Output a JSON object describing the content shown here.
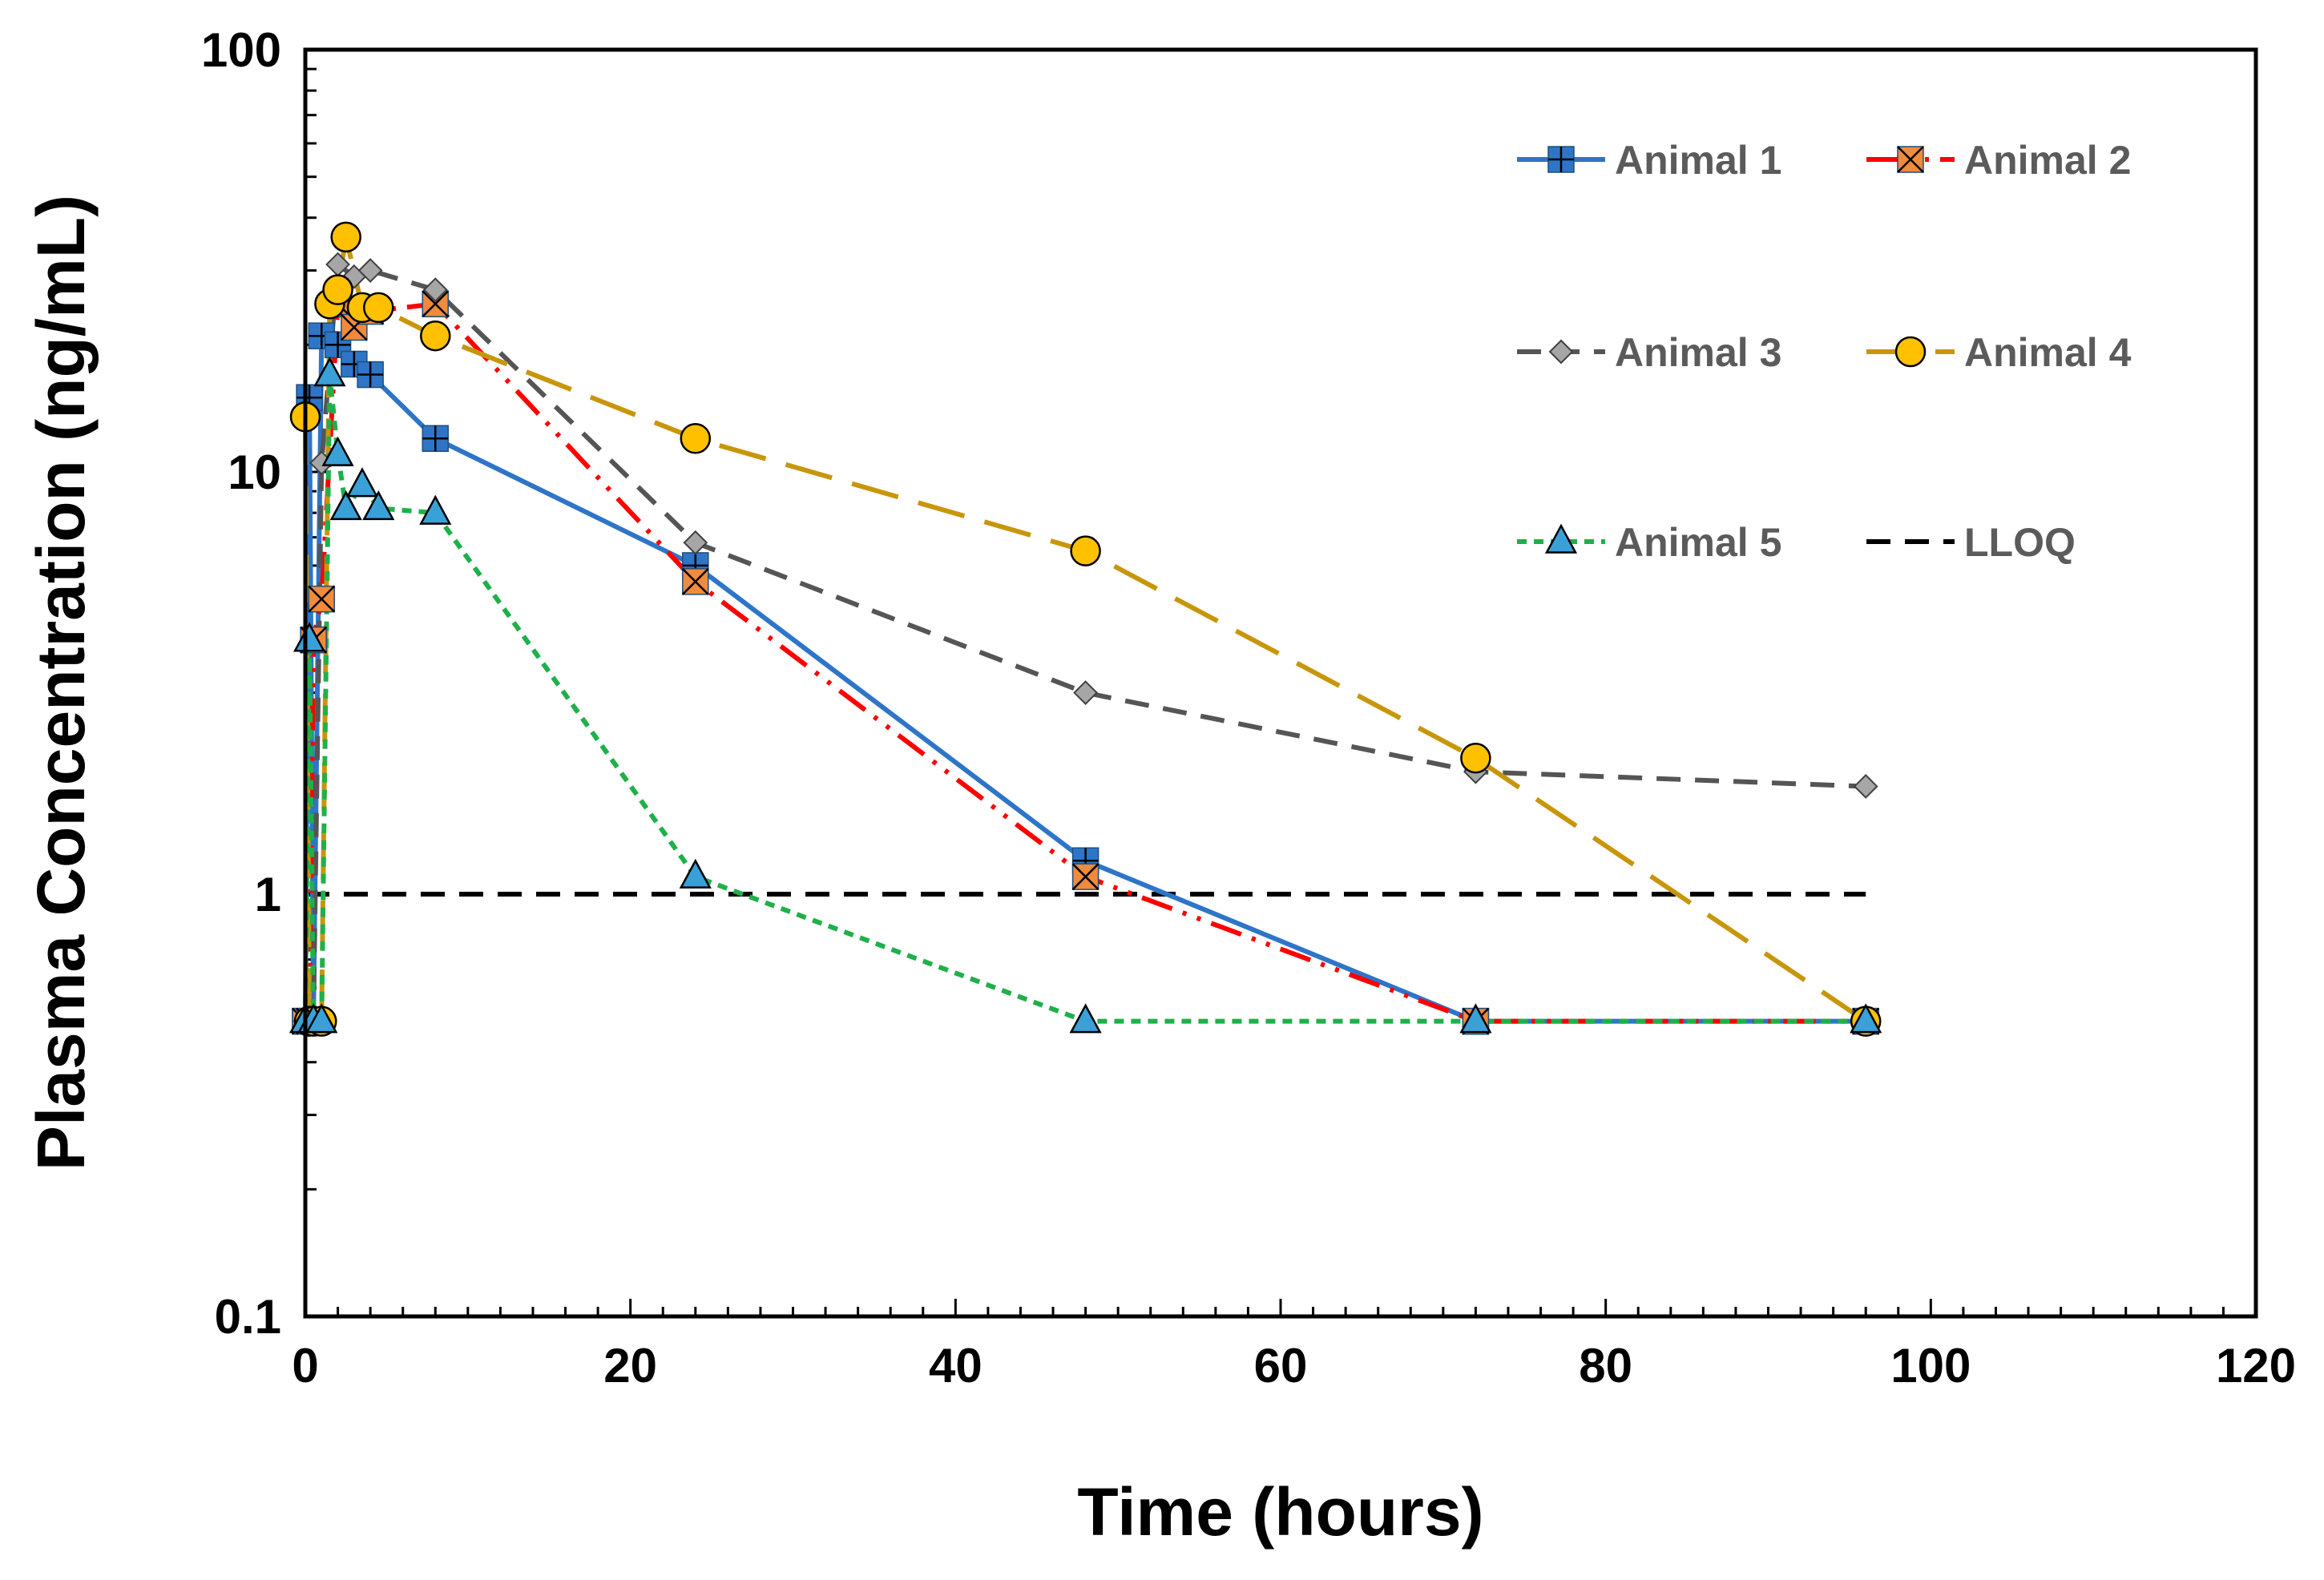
{
  "chart_data": {
    "type": "line",
    "title": "",
    "xlabel": "Time (hours)",
    "ylabel": "Plasma Concentration (ng/mL)",
    "xlim": [
      0,
      120
    ],
    "ylim": [
      0.1,
      100
    ],
    "yscale": "log",
    "x_ticks": [
      0,
      20,
      40,
      60,
      80,
      100,
      120
    ],
    "x_tick_labels": [
      "0",
      "20",
      "40",
      "60",
      "80",
      "100",
      "120"
    ],
    "y_ticks": [
      0.1,
      1,
      10,
      100
    ],
    "y_tick_labels": [
      "0.1",
      "1",
      "10",
      "100"
    ],
    "grid": false,
    "legend_position": "top-right",
    "series": [
      {
        "name": "Animal 1",
        "color": "#2e75c8",
        "marker": "square-plus",
        "marker_fill": "#2e75c8",
        "dash": "solid",
        "points": [
          [
            0,
            0.5
          ],
          [
            0.25,
            15
          ],
          [
            0.5,
            0.5
          ],
          [
            1,
            21
          ],
          [
            2,
            20
          ],
          [
            3,
            18
          ],
          [
            4,
            17
          ],
          [
            8,
            12
          ],
          [
            24,
            6
          ],
          [
            48,
            1.2
          ],
          [
            72,
            0.5
          ],
          [
            96,
            0.5
          ]
        ]
      },
      {
        "name": "Animal 2",
        "color": "#ff0000",
        "marker": "square-x",
        "marker_fill": "#f08a3c",
        "dash": "dashdotdot",
        "points": [
          [
            0,
            0.5
          ],
          [
            0.25,
            0.5
          ],
          [
            0.5,
            4
          ],
          [
            1,
            5
          ],
          [
            2,
            25
          ],
          [
            3,
            22
          ],
          [
            4,
            24
          ],
          [
            8,
            25
          ],
          [
            24,
            5.5
          ],
          [
            48,
            1.1
          ],
          [
            72,
            0.5
          ],
          [
            96,
            0.5
          ]
        ]
      },
      {
        "name": "Animal 3",
        "color": "#555555",
        "marker": "diamond",
        "marker_fill": "#a6a6a6",
        "dash": "dash",
        "points": [
          [
            0,
            0.5
          ],
          [
            0.25,
            0.5
          ],
          [
            0.5,
            0.5
          ],
          [
            1,
            10.5
          ],
          [
            2,
            31
          ],
          [
            3,
            29
          ],
          [
            4,
            30
          ],
          [
            8,
            27
          ],
          [
            24,
            6.8
          ],
          [
            48,
            3
          ],
          [
            72,
            1.95
          ],
          [
            96,
            1.8
          ]
        ]
      },
      {
        "name": "Animal 4",
        "color": "#c8960a",
        "marker": "circle",
        "marker_fill": "#ffc000",
        "dash": "longdash",
        "points": [
          [
            0,
            13.5
          ],
          [
            0.25,
            0.5
          ],
          [
            0.5,
            0.5
          ],
          [
            1,
            0.5
          ],
          [
            1.5,
            25
          ],
          [
            2,
            27
          ],
          [
            2.5,
            36
          ],
          [
            3.5,
            24.5
          ],
          [
            4.5,
            24.5
          ],
          [
            8,
            21
          ],
          [
            24,
            12
          ],
          [
            48,
            6.5
          ],
          [
            72,
            2.1
          ],
          [
            96,
            0.5
          ]
        ]
      },
      {
        "name": "Animal 5",
        "color": "#1fb04a",
        "marker": "triangle",
        "marker_fill": "#3aa0d8",
        "dash": "dot",
        "points": [
          [
            0,
            0.5
          ],
          [
            0.25,
            4
          ],
          [
            0.5,
            0.5
          ],
          [
            1,
            0.5
          ],
          [
            1.5,
            17
          ],
          [
            2,
            11
          ],
          [
            2.5,
            8.2
          ],
          [
            3.5,
            9.3
          ],
          [
            4.5,
            8.2
          ],
          [
            8,
            8
          ],
          [
            24,
            1.1
          ],
          [
            48,
            0.5
          ],
          [
            72,
            0.5
          ],
          [
            96,
            0.5
          ]
        ]
      },
      {
        "name": "LLOQ",
        "color": "#000000",
        "marker": "none",
        "dash": "dash",
        "points": [
          [
            0,
            1
          ],
          [
            96,
            1
          ]
        ]
      }
    ]
  }
}
